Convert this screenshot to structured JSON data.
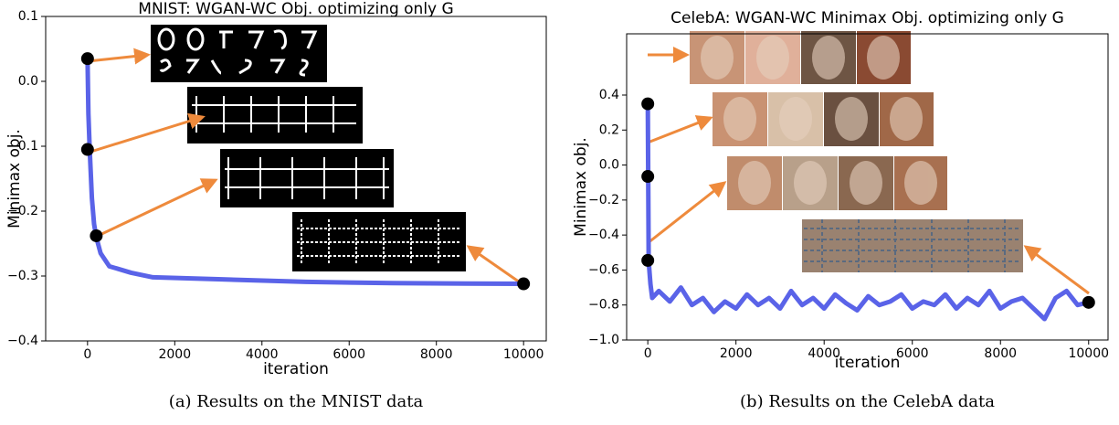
{
  "chart_data": [
    {
      "type": "line",
      "title": "MNIST: WGAN-WC Obj. optimizing only G",
      "x_label": "iteration",
      "y_label": "Minimax obj.",
      "caption": "(a) Results on the MNIST data",
      "xlim": [
        -960,
        10520
      ],
      "xticks": [
        0,
        2000,
        4000,
        6000,
        8000,
        10000
      ],
      "ylim": [
        -0.4,
        0.1
      ],
      "yticks": [
        {
          "value": -0.4,
          "label": "−0.4"
        },
        {
          "value": -0.3,
          "label": "−0.3"
        },
        {
          "value": -0.2,
          "label": "−0.2"
        },
        {
          "value": -0.1,
          "label": "−0.1"
        },
        {
          "value": 0,
          "label": "0.0"
        },
        0.1
      ],
      "series": [
        {
          "color": "#5a63e8",
          "x": [
            0,
            20,
            50,
            100,
            150,
            200,
            300,
            500,
            1000,
            1500,
            3000,
            5000,
            7000,
            10000
          ],
          "values": [
            0.035,
            -0.05,
            -0.105,
            -0.18,
            -0.22,
            -0.24,
            -0.265,
            -0.285,
            -0.295,
            -0.302,
            -0.305,
            -0.309,
            -0.311,
            -0.312
          ]
        }
      ],
      "markers": {
        "color": "#000000",
        "x": [
          0,
          0,
          200,
          10000
        ],
        "values": [
          0.035,
          -0.105,
          -0.238,
          -0.312
        ]
      }
    },
    {
      "type": "line",
      "title": "CelebA: WGAN-WC Minimax Obj. optimizing only G",
      "x_label": "iteration",
      "y_label": "Minimax obj.",
      "caption": "(b) Results on the CelebA data",
      "xlim": [
        -480,
        10440
      ],
      "xticks": [
        0,
        2000,
        4000,
        6000,
        8000,
        10000
      ],
      "ylim": [
        -1.0,
        0.75
      ],
      "yticks": [
        {
          "value": -1.0,
          "label": "−1.0"
        },
        {
          "value": -0.8,
          "label": "−0.8"
        },
        {
          "value": -0.6,
          "label": "−0.6"
        },
        {
          "value": -0.4,
          "label": "−0.4"
        },
        {
          "value": -0.2,
          "label": "−0.2"
        },
        {
          "value": 0,
          "label": "0.0"
        },
        0.2,
        0.4
      ],
      "series": [
        {
          "color": "#5a63e8",
          "x": [
            0,
            20,
            60,
            100,
            250,
            500,
            750,
            1000,
            1250,
            1500,
            1750,
            2000,
            2250,
            2500,
            2750,
            3000,
            3250,
            3500,
            3750,
            4000,
            4250,
            4500,
            4750,
            5000,
            5250,
            5500,
            5750,
            6000,
            6250,
            6500,
            6750,
            7000,
            7250,
            7500,
            7750,
            8000,
            8250,
            8500,
            8750,
            9000,
            9250,
            9500,
            9750,
            10000
          ],
          "values": [
            0.35,
            -0.55,
            -0.68,
            -0.76,
            -0.72,
            -0.78,
            -0.7,
            -0.8,
            -0.76,
            -0.84,
            -0.78,
            -0.82,
            -0.74,
            -0.8,
            -0.76,
            -0.82,
            -0.72,
            -0.8,
            -0.76,
            -0.82,
            -0.74,
            -0.79,
            -0.83,
            -0.75,
            -0.8,
            -0.78,
            -0.74,
            -0.82,
            -0.78,
            -0.8,
            -0.74,
            -0.82,
            -0.76,
            -0.8,
            -0.72,
            -0.82,
            -0.78,
            -0.76,
            -0.82,
            -0.88,
            -0.76,
            -0.72,
            -0.8,
            -0.785
          ]
        }
      ],
      "markers": {
        "color": "#000000",
        "x": [
          0,
          0,
          0,
          10000
        ],
        "values": [
          0.35,
          -0.065,
          -0.545,
          -0.785
        ]
      }
    }
  ]
}
